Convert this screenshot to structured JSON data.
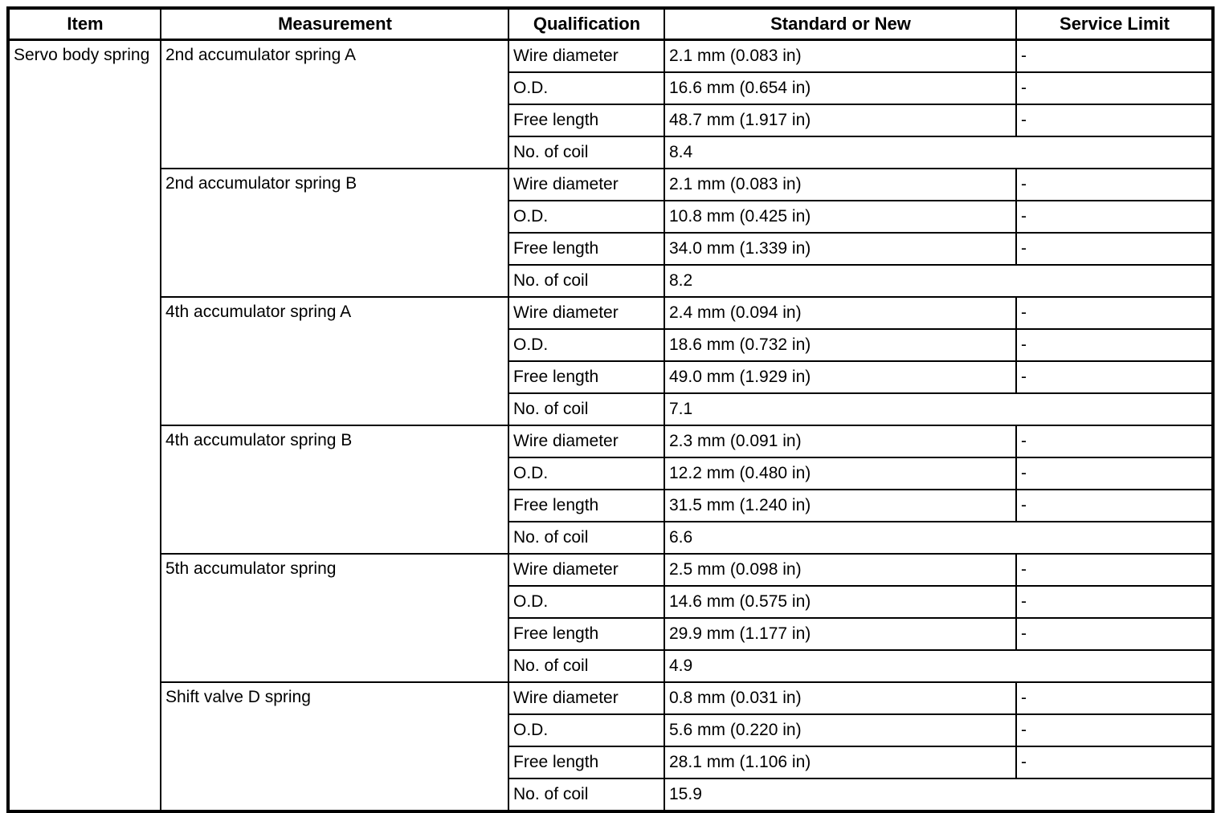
{
  "table": {
    "headers": [
      "Item",
      "Measurement",
      "Qualification",
      "Standard or New",
      "Service Limit"
    ],
    "item": "Servo body spring",
    "groups": [
      {
        "measurement": "2nd accumulator spring A",
        "rows": [
          {
            "qualification": "Wire diameter",
            "standard": "2.1 mm (0.083 in)",
            "service_limit": "-"
          },
          {
            "qualification": "O.D.",
            "standard": "16.6 mm (0.654 in)",
            "service_limit": "-"
          },
          {
            "qualification": "Free length",
            "standard": "48.7 mm (1.917 in)",
            "service_limit": "-"
          },
          {
            "qualification": "No. of coil",
            "standard": "8.4"
          }
        ]
      },
      {
        "measurement": "2nd accumulator spring B",
        "rows": [
          {
            "qualification": "Wire diameter",
            "standard": "2.1 mm (0.083 in)",
            "service_limit": "-"
          },
          {
            "qualification": "O.D.",
            "standard": "10.8 mm (0.425 in)",
            "service_limit": "-"
          },
          {
            "qualification": "Free length",
            "standard": "34.0 mm (1.339 in)",
            "service_limit": "-"
          },
          {
            "qualification": "No. of coil",
            "standard": "8.2"
          }
        ]
      },
      {
        "measurement": "4th accumulator spring A",
        "rows": [
          {
            "qualification": "Wire diameter",
            "standard": "2.4 mm (0.094 in)",
            "service_limit": "-"
          },
          {
            "qualification": "O.D.",
            "standard": "18.6 mm (0.732 in)",
            "service_limit": "-"
          },
          {
            "qualification": "Free length",
            "standard": "49.0 mm (1.929 in)",
            "service_limit": "-"
          },
          {
            "qualification": "No. of coil",
            "standard": "7.1"
          }
        ]
      },
      {
        "measurement": "4th accumulator spring B",
        "rows": [
          {
            "qualification": "Wire diameter",
            "standard": "2.3 mm (0.091 in)",
            "service_limit": "-"
          },
          {
            "qualification": "O.D.",
            "standard": "12.2 mm (0.480 in)",
            "service_limit": "-"
          },
          {
            "qualification": "Free length",
            "standard": "31.5 mm (1.240 in)",
            "service_limit": "-"
          },
          {
            "qualification": "No. of coil",
            "standard": "6.6"
          }
        ]
      },
      {
        "measurement": "5th accumulator spring",
        "rows": [
          {
            "qualification": "Wire diameter",
            "standard": "2.5 mm (0.098 in)",
            "service_limit": "-"
          },
          {
            "qualification": "O.D.",
            "standard": "14.6 mm (0.575 in)",
            "service_limit": "-"
          },
          {
            "qualification": "Free length",
            "standard": "29.9 mm (1.177 in)",
            "service_limit": "-"
          },
          {
            "qualification": "No. of coil",
            "standard": "4.9"
          }
        ]
      },
      {
        "measurement": "Shift valve D spring",
        "rows": [
          {
            "qualification": "Wire diameter",
            "standard": "0.8 mm (0.031 in)",
            "service_limit": "-"
          },
          {
            "qualification": "O.D.",
            "standard": "5.6 mm (0.220 in)",
            "service_limit": "-"
          },
          {
            "qualification": "Free length",
            "standard": "28.1 mm (1.106 in)",
            "service_limit": "-"
          },
          {
            "qualification": "No. of coil",
            "standard": "15.9"
          }
        ]
      }
    ]
  }
}
